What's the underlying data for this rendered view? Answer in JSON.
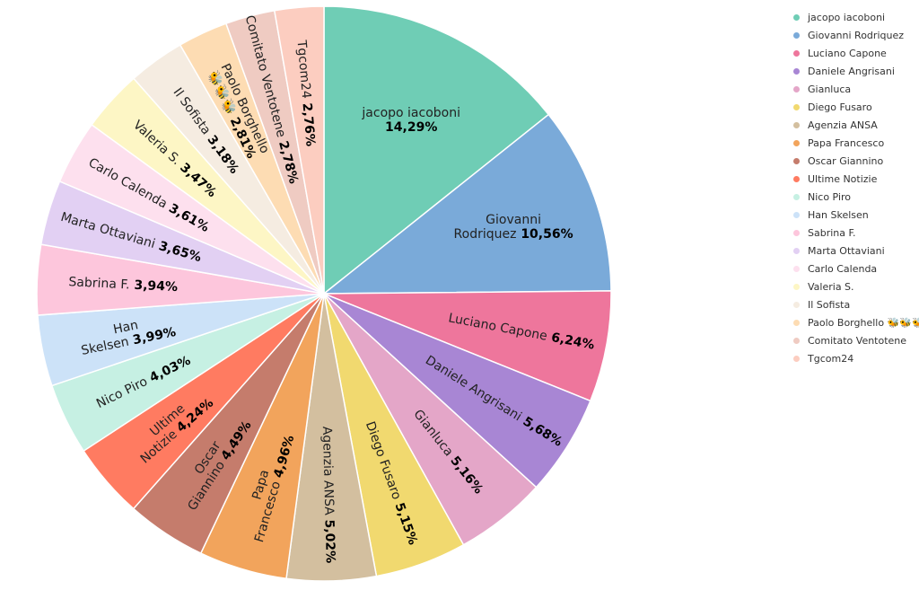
{
  "chart_data": {
    "type": "pie",
    "title": "",
    "start_angle_deg": 0,
    "direction": "clockwise",
    "legend_position": "top-right",
    "slices": [
      {
        "label": "jacopo iacoboni",
        "label_lines": [
          "jacopo iacoboni"
        ],
        "pct_text": "14,29%",
        "value": 14.29,
        "color": "#6fcdb5"
      },
      {
        "label": "Giovanni Rodriquez",
        "label_lines": [
          "Giovanni",
          "Rodriquez"
        ],
        "pct_text": "10,56%",
        "value": 10.56,
        "color": "#7aaad9"
      },
      {
        "label": "Luciano Capone",
        "label_lines": [
          "Luciano Capone"
        ],
        "pct_text": "6,24%",
        "value": 6.24,
        "color": "#ee769c"
      },
      {
        "label": "Daniele Angrisani",
        "label_lines": [
          "Daniele Angrisani"
        ],
        "pct_text": "5,68%",
        "value": 5.68,
        "color": "#a886d4"
      },
      {
        "label": "Gianluca",
        "label_lines": [
          "Gianluca"
        ],
        "pct_text": "5,16%",
        "value": 5.16,
        "color": "#e4a6c8"
      },
      {
        "label": "Diego Fusaro",
        "label_lines": [
          "Diego Fusaro"
        ],
        "pct_text": "5,15%",
        "value": 5.15,
        "color": "#f1d96f"
      },
      {
        "label": "Agenzia ANSA",
        "label_lines": [
          "Agenzia ANSA"
        ],
        "pct_text": "5,02%",
        "value": 5.02,
        "color": "#d3bf9f"
      },
      {
        "label": "Papa Francesco",
        "label_lines": [
          "Papa",
          "Francesco"
        ],
        "pct_text": "4,96%",
        "value": 4.96,
        "color": "#f2a45c"
      },
      {
        "label": "Oscar Giannino",
        "label_lines": [
          "Oscar",
          "Giannino"
        ],
        "pct_text": "4,49%",
        "value": 4.49,
        "color": "#c57c6c"
      },
      {
        "label": "Ultime Notizie",
        "label_lines": [
          "Ultime",
          "Notizie"
        ],
        "pct_text": "4,24%",
        "value": 4.24,
        "color": "#ff7b61"
      },
      {
        "label": "Nico Piro",
        "label_lines": [
          "Nico Piro"
        ],
        "pct_text": "4,03%",
        "value": 4.03,
        "color": "#c6f0e3"
      },
      {
        "label": "Han Skelsen",
        "label_lines": [
          "Han",
          "Skelsen"
        ],
        "pct_text": "3,99%",
        "value": 3.99,
        "color": "#cce2f8"
      },
      {
        "label": "Sabrina F.",
        "label_lines": [
          "Sabrina F."
        ],
        "pct_text": "3,94%",
        "value": 3.94,
        "color": "#fdc6dc"
      },
      {
        "label": "Marta Ottaviani",
        "label_lines": [
          "Marta Ottaviani"
        ],
        "pct_text": "3,65%",
        "value": 3.65,
        "color": "#e2d0f3"
      },
      {
        "label": "Carlo Calenda",
        "label_lines": [
          "Carlo Calenda"
        ],
        "pct_text": "3,61%",
        "value": 3.61,
        "color": "#fde0ee"
      },
      {
        "label": "Valeria S.",
        "label_lines": [
          "Valeria S."
        ],
        "pct_text": "3,47%",
        "value": 3.47,
        "color": "#fdf6c5"
      },
      {
        "label": "Il Sofista",
        "label_lines": [
          "Il Sofista"
        ],
        "pct_text": "3,18%",
        "value": 3.18,
        "color": "#f5ece1"
      },
      {
        "label": "Paolo Borghello 🐝🐝🐝",
        "label_lines": [
          "Paolo Borghello",
          "🐝🐝🐝"
        ],
        "pct_text": "2,81%",
        "value": 2.81,
        "color": "#fddcb3"
      },
      {
        "label": "Comitato Ventotene",
        "label_lines": [
          "Comitato Ventotene"
        ],
        "pct_text": "2,78%",
        "value": 2.78,
        "color": "#efcbc2"
      },
      {
        "label": "Tgcom24",
        "label_lines": [
          "Tgcom24"
        ],
        "pct_text": "2,76%",
        "value": 2.76,
        "color": "#fccdc0"
      }
    ]
  }
}
